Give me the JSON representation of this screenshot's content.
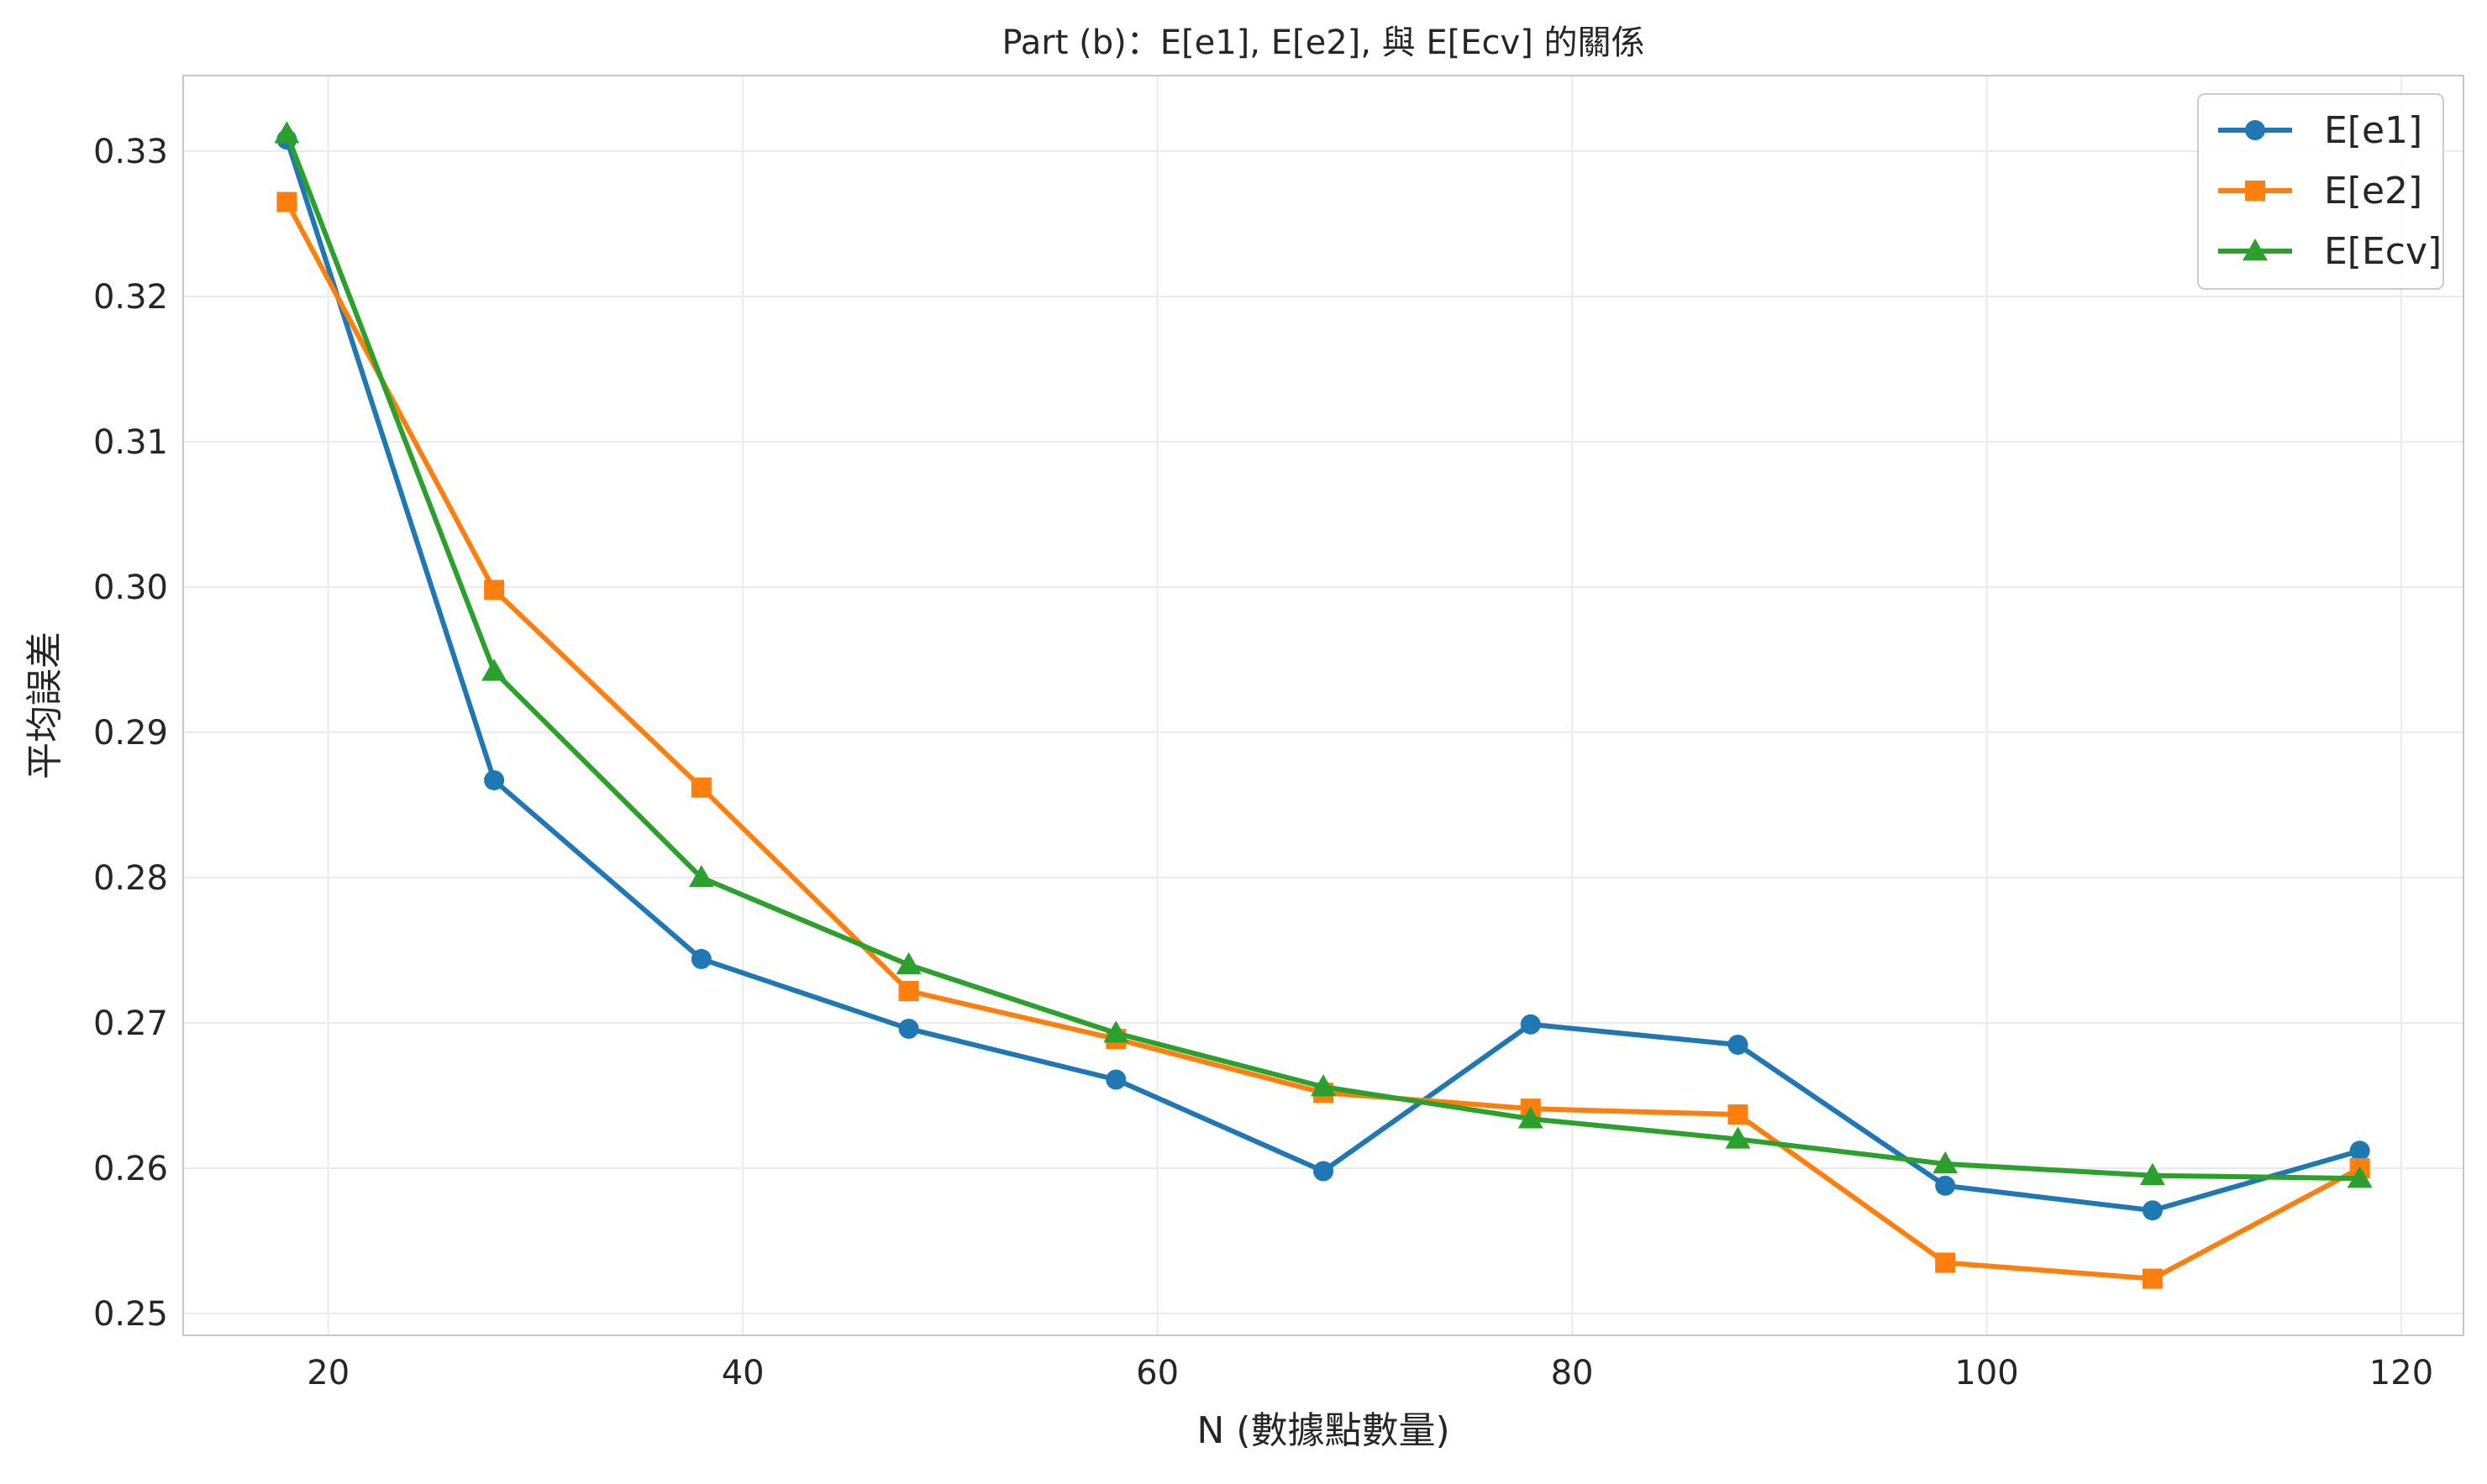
{
  "chart_data": {
    "type": "line",
    "title": "Part (b)：E[e1], E[e2], 與 E[Ecv] 的關係",
    "xlabel": "N (數據點數量)",
    "ylabel": "平均誤差",
    "xlim": [
      13,
      123
    ],
    "ylim": [
      0.2485,
      0.3352
    ],
    "x_ticks": [
      20,
      40,
      60,
      80,
      100,
      120
    ],
    "y_ticks": [
      0.25,
      0.26,
      0.27,
      0.28,
      0.29,
      0.3,
      0.31,
      0.32,
      0.33
    ],
    "x_tick_labels": [
      "20",
      "40",
      "60",
      "80",
      "100",
      "120"
    ],
    "y_tick_labels": [
      "0.25",
      "0.26",
      "0.27",
      "0.28",
      "0.29",
      "0.30",
      "0.31",
      "0.32",
      "0.33"
    ],
    "grid": true,
    "legend_position": "top-right",
    "x": [
      18,
      28,
      38,
      48,
      58,
      68,
      78,
      88,
      98,
      108,
      118
    ],
    "series": [
      {
        "name": "E[e1]",
        "color": "#1f77b4",
        "marker": "circle",
        "values": [
          0.3308,
          0.2867,
          0.2744,
          0.2696,
          0.2661,
          0.2598,
          0.2699,
          0.2685,
          0.2588,
          0.2571,
          0.2612
        ]
      },
      {
        "name": "E[e2]",
        "color": "#ff7f0e",
        "marker": "square",
        "values": [
          0.3265,
          0.2998,
          0.2862,
          0.2722,
          0.2689,
          0.2652,
          0.2641,
          0.2637,
          0.2535,
          0.2524,
          0.26
        ]
      },
      {
        "name": "E[Ecv]",
        "color": "#2ca02c",
        "marker": "triangle",
        "values": [
          0.3312,
          0.2942,
          0.28,
          0.274,
          0.2693,
          0.2656,
          0.2634,
          0.262,
          0.2603,
          0.2595,
          0.2593
        ]
      }
    ]
  }
}
